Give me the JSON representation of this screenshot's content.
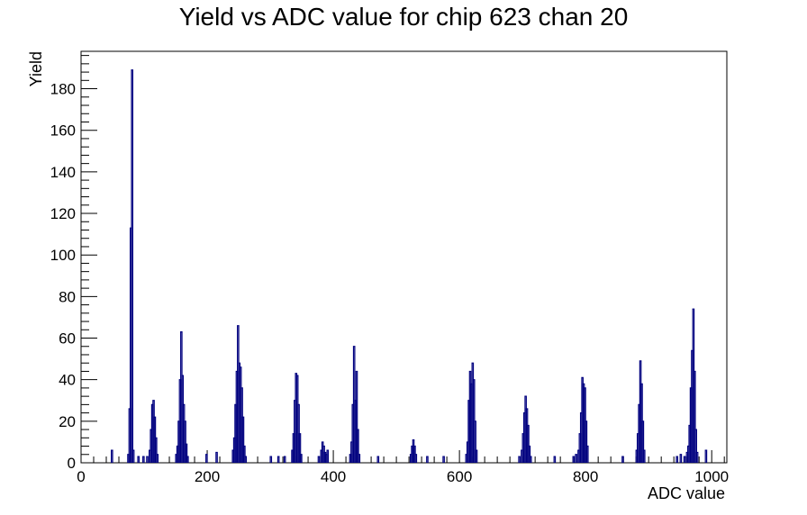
{
  "chart_data": {
    "type": "bar",
    "title": "Yield vs ADC value for chip 623 chan 20",
    "xlabel": "ADC value",
    "ylabel": "Yield",
    "xlim": [
      0,
      1024
    ],
    "ylim": [
      0,
      198
    ],
    "x_ticks": [
      0,
      200,
      400,
      600,
      800,
      1000
    ],
    "y_ticks": [
      0,
      20,
      40,
      60,
      80,
      100,
      120,
      140,
      160,
      180
    ],
    "bin_width": 2,
    "line_color": "#00007f",
    "grid": false,
    "bins": [
      {
        "x": 48,
        "y": 6
      },
      {
        "x": 74,
        "y": 4
      },
      {
        "x": 76,
        "y": 26
      },
      {
        "x": 78,
        "y": 113
      },
      {
        "x": 80,
        "y": 189
      },
      {
        "x": 82,
        "y": 6
      },
      {
        "x": 90,
        "y": 3
      },
      {
        "x": 98,
        "y": 3
      },
      {
        "x": 104,
        "y": 3
      },
      {
        "x": 108,
        "y": 6
      },
      {
        "x": 110,
        "y": 16
      },
      {
        "x": 112,
        "y": 28
      },
      {
        "x": 114,
        "y": 30
      },
      {
        "x": 116,
        "y": 22
      },
      {
        "x": 118,
        "y": 12
      },
      {
        "x": 120,
        "y": 4
      },
      {
        "x": 150,
        "y": 4
      },
      {
        "x": 152,
        "y": 8
      },
      {
        "x": 154,
        "y": 20
      },
      {
        "x": 156,
        "y": 40
      },
      {
        "x": 158,
        "y": 63
      },
      {
        "x": 160,
        "y": 42
      },
      {
        "x": 162,
        "y": 28
      },
      {
        "x": 164,
        "y": 20
      },
      {
        "x": 166,
        "y": 9
      },
      {
        "x": 168,
        "y": 3
      },
      {
        "x": 198,
        "y": 4
      },
      {
        "x": 214,
        "y": 5
      },
      {
        "x": 240,
        "y": 6
      },
      {
        "x": 242,
        "y": 12
      },
      {
        "x": 244,
        "y": 28
      },
      {
        "x": 246,
        "y": 44
      },
      {
        "x": 248,
        "y": 66
      },
      {
        "x": 250,
        "y": 48
      },
      {
        "x": 252,
        "y": 46
      },
      {
        "x": 254,
        "y": 36
      },
      {
        "x": 256,
        "y": 22
      },
      {
        "x": 258,
        "y": 8
      },
      {
        "x": 260,
        "y": 3
      },
      {
        "x": 300,
        "y": 3
      },
      {
        "x": 312,
        "y": 3
      },
      {
        "x": 322,
        "y": 3
      },
      {
        "x": 334,
        "y": 6
      },
      {
        "x": 336,
        "y": 14
      },
      {
        "x": 338,
        "y": 30
      },
      {
        "x": 340,
        "y": 43
      },
      {
        "x": 342,
        "y": 42
      },
      {
        "x": 344,
        "y": 28
      },
      {
        "x": 346,
        "y": 14
      },
      {
        "x": 348,
        "y": 4
      },
      {
        "x": 376,
        "y": 3
      },
      {
        "x": 380,
        "y": 6
      },
      {
        "x": 382,
        "y": 10
      },
      {
        "x": 384,
        "y": 8
      },
      {
        "x": 386,
        "y": 5
      },
      {
        "x": 388,
        "y": 4
      },
      {
        "x": 390,
        "y": 6
      },
      {
        "x": 426,
        "y": 4
      },
      {
        "x": 428,
        "y": 10
      },
      {
        "x": 430,
        "y": 28
      },
      {
        "x": 432,
        "y": 56
      },
      {
        "x": 434,
        "y": 30
      },
      {
        "x": 436,
        "y": 44
      },
      {
        "x": 438,
        "y": 16
      },
      {
        "x": 440,
        "y": 4
      },
      {
        "x": 470,
        "y": 3
      },
      {
        "x": 522,
        "y": 4
      },
      {
        "x": 524,
        "y": 8
      },
      {
        "x": 526,
        "y": 11
      },
      {
        "x": 528,
        "y": 8
      },
      {
        "x": 530,
        "y": 4
      },
      {
        "x": 548,
        "y": 3
      },
      {
        "x": 574,
        "y": 3
      },
      {
        "x": 610,
        "y": 4
      },
      {
        "x": 612,
        "y": 10
      },
      {
        "x": 614,
        "y": 30
      },
      {
        "x": 616,
        "y": 44
      },
      {
        "x": 618,
        "y": 38
      },
      {
        "x": 620,
        "y": 48
      },
      {
        "x": 622,
        "y": 40
      },
      {
        "x": 624,
        "y": 20
      },
      {
        "x": 626,
        "y": 6
      },
      {
        "x": 694,
        "y": 3
      },
      {
        "x": 698,
        "y": 6
      },
      {
        "x": 700,
        "y": 14
      },
      {
        "x": 702,
        "y": 24
      },
      {
        "x": 704,
        "y": 32
      },
      {
        "x": 706,
        "y": 26
      },
      {
        "x": 708,
        "y": 18
      },
      {
        "x": 710,
        "y": 8
      },
      {
        "x": 712,
        "y": 3
      },
      {
        "x": 750,
        "y": 3
      },
      {
        "x": 780,
        "y": 3
      },
      {
        "x": 784,
        "y": 4
      },
      {
        "x": 788,
        "y": 6
      },
      {
        "x": 790,
        "y": 14
      },
      {
        "x": 792,
        "y": 24
      },
      {
        "x": 794,
        "y": 41
      },
      {
        "x": 796,
        "y": 38
      },
      {
        "x": 798,
        "y": 36
      },
      {
        "x": 800,
        "y": 20
      },
      {
        "x": 802,
        "y": 8
      },
      {
        "x": 858,
        "y": 3
      },
      {
        "x": 880,
        "y": 6
      },
      {
        "x": 882,
        "y": 14
      },
      {
        "x": 884,
        "y": 28
      },
      {
        "x": 886,
        "y": 49
      },
      {
        "x": 888,
        "y": 38
      },
      {
        "x": 890,
        "y": 20
      },
      {
        "x": 892,
        "y": 6
      },
      {
        "x": 944,
        "y": 3
      },
      {
        "x": 950,
        "y": 4
      },
      {
        "x": 956,
        "y": 3
      },
      {
        "x": 960,
        "y": 5
      },
      {
        "x": 962,
        "y": 8
      },
      {
        "x": 964,
        "y": 18
      },
      {
        "x": 966,
        "y": 36
      },
      {
        "x": 968,
        "y": 54
      },
      {
        "x": 970,
        "y": 74
      },
      {
        "x": 972,
        "y": 44
      },
      {
        "x": 974,
        "y": 16
      },
      {
        "x": 976,
        "y": 5
      },
      {
        "x": 990,
        "y": 6
      }
    ]
  }
}
